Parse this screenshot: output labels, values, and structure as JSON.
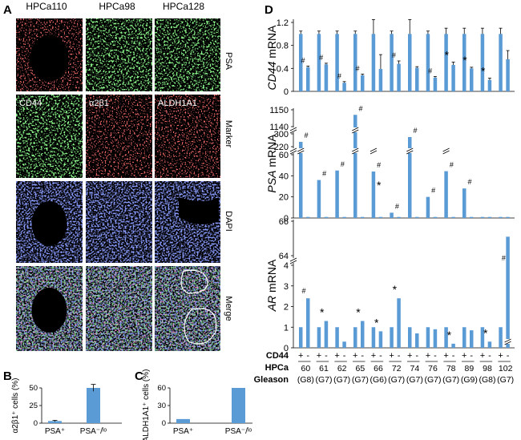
{
  "panels": {
    "a": "A",
    "b": "B",
    "c": "C",
    "d": "D"
  },
  "microscopy": {
    "columns": [
      "HPCa110",
      "HPCa98",
      "HPCa128"
    ],
    "rows": [
      "PSA",
      "Marker",
      "DAPI",
      "Merge"
    ],
    "marker_labels": [
      "CD44",
      "α2β1",
      "ALDH1A1"
    ],
    "colors": {
      "psa": "#ff2a2a",
      "psa_green": "#3cdc3c",
      "marker_green": "#39d639",
      "marker_red": "#ff2222",
      "dapi": "#3a4ae0"
    }
  },
  "chart_data": [
    {
      "id": "B",
      "type": "bar",
      "ylabel": "α2β1⁺ cells (%)",
      "categories": [
        "PSA⁺",
        "PSA⁻/ˡᵒ"
      ],
      "values": [
        3,
        50
      ],
      "errors": [
        1,
        5
      ],
      "ylim": [
        0,
        50
      ],
      "yticks": [
        0,
        25,
        50
      ],
      "color": "#5b9bd5"
    },
    {
      "id": "C",
      "type": "bar",
      "ylabel": "ALDH1A1⁺ cells (%)",
      "categories": [
        "PSA⁺",
        "PSA⁻/ˡᵒ"
      ],
      "values": [
        7,
        60
      ],
      "ylim": [
        0,
        60
      ],
      "yticks": [
        0,
        30,
        60
      ],
      "color": "#5b9bd5"
    },
    {
      "id": "D",
      "type": "bar",
      "color": "#5b9bd5",
      "row_labels": {
        "cd44": "CD44",
        "hpca": "HPCa",
        "gleason": "Gleason"
      },
      "cd44_signs": [
        "+",
        "-"
      ],
      "hpca": [
        "60",
        "61",
        "62",
        "65",
        "66",
        "72",
        "74",
        "76",
        "78",
        "89",
        "98",
        "102"
      ],
      "gleason": [
        "(G8)",
        "(G7)",
        "(G7)",
        "(G7)",
        "(G6)",
        "(G7)",
        "(G7)",
        "(G7)",
        "(G7)",
        "(G9)",
        "(G8)",
        "(G7)"
      ],
      "subplots": [
        {
          "ylabel_italic": "CD44",
          "ylabel_rest": " mRNA",
          "yticks": [
            "0",
            "0.4",
            "0.8",
            "1.2"
          ],
          "ylim": [
            0,
            1.3
          ],
          "values_pos": [
            1,
            1,
            1,
            1,
            1,
            1,
            1,
            1,
            1,
            1,
            1,
            1
          ],
          "errors_pos": [
            0.05,
            0.05,
            0.05,
            0.05,
            0.25,
            0.05,
            0.25,
            0.05,
            0.1,
            0.1,
            0.1,
            0.1
          ],
          "values_neg": [
            0.42,
            0.47,
            0.15,
            0.28,
            0.39,
            0.48,
            0.41,
            0.24,
            0.46,
            0.4,
            0.2,
            0.56
          ],
          "errors_neg": [
            0.02,
            0.02,
            0.02,
            0.02,
            0.25,
            0.05,
            0.02,
            0.02,
            0.05,
            0.02,
            0.03,
            0.15
          ],
          "marks": [
            "#",
            "#",
            "#",
            "#",
            "",
            "#",
            "",
            "#",
            "*",
            "*",
            "*",
            ""
          ]
        },
        {
          "ylabel_italic": "PSA",
          "ylabel_rest": " mRNA",
          "yticks": [
            "0",
            "20",
            "40",
            "60",
            "220",
            "300",
            "1140",
            "1150"
          ],
          "values_pos": [
            250,
            36,
            45,
            1147,
            65,
            5,
            280,
            20,
            67,
            28,
            1,
            1
          ],
          "values_neg": [
            1,
            1,
            1,
            1,
            1,
            1,
            1,
            1,
            1,
            1,
            1,
            1
          ],
          "marks_neg": [
            "",
            "",
            "",
            "",
            "*",
            "",
            "",
            "",
            "",
            "",
            "",
            ""
          ],
          "marks_pos": [
            "#",
            "#",
            "#",
            "#",
            "#",
            "#",
            "#",
            "#",
            "#",
            "#",
            "",
            ""
          ]
        },
        {
          "ylabel_italic": "AR",
          "ylabel_rest": " mRNA",
          "yticks": [
            "0",
            "1",
            "2",
            "3",
            "4",
            "64",
            "66"
          ],
          "values_pos": [
            1,
            1,
            1,
            1,
            1,
            1,
            1,
            1,
            1,
            1,
            1,
            1
          ],
          "values_neg": [
            2.4,
            1.3,
            0.3,
            1.3,
            0.8,
            2.4,
            0.7,
            0.9,
            0.2,
            0.85,
            0.3,
            65.1
          ],
          "marks": [
            "#",
            "*",
            "",
            "*",
            "*",
            "*",
            "",
            "",
            "*",
            "",
            "*",
            "#"
          ]
        }
      ]
    }
  ]
}
